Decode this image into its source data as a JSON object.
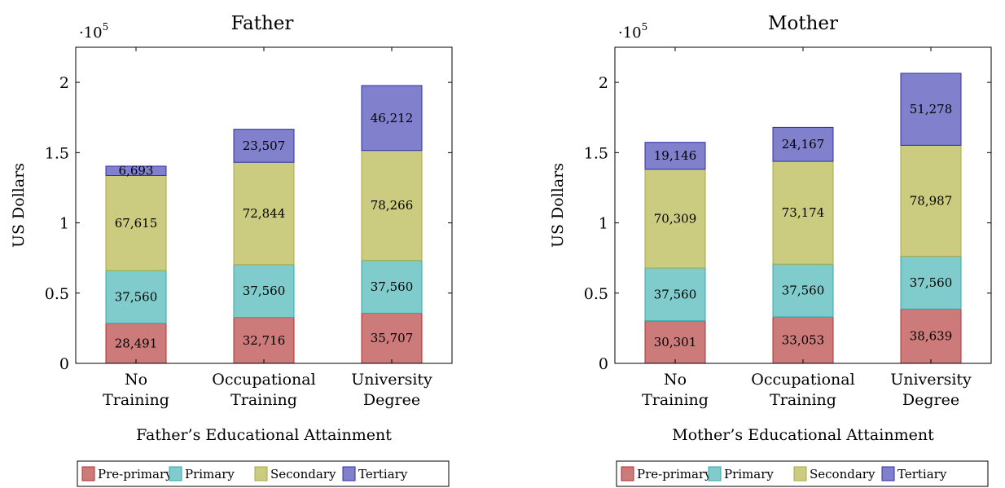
{
  "chart_data": [
    {
      "type": "bar",
      "stacked": true,
      "title": "Father",
      "xlabel": "Father’s Educational Attainment",
      "ylabel": "US Dollars",
      "ylim": [
        0,
        225000
      ],
      "yticks": [
        0,
        50000,
        100000,
        150000,
        200000
      ],
      "ytick_labels": [
        "0",
        "0.5",
        "1",
        "1.5",
        "2"
      ],
      "y_multiplier": "·10",
      "y_multiplier_exp": "5",
      "categories": [
        [
          "No",
          "Training"
        ],
        [
          "Occupational",
          "Training"
        ],
        [
          "University",
          "Degree"
        ]
      ],
      "series": [
        {
          "name": "Pre-primary",
          "values": [
            28491,
            32716,
            35707
          ],
          "labels": [
            "28,491",
            "32,716",
            "35,707"
          ]
        },
        {
          "name": "Primary",
          "values": [
            37560,
            37560,
            37560
          ],
          "labels": [
            "37,560",
            "37,560",
            "37,560"
          ]
        },
        {
          "name": "Secondary",
          "values": [
            67615,
            72844,
            78266
          ],
          "labels": [
            "67,615",
            "72,844",
            "78,266"
          ]
        },
        {
          "name": "Tertiary",
          "values": [
            6693,
            23507,
            46212
          ],
          "labels": [
            "6,693",
            "23,507",
            "46,212"
          ]
        }
      ],
      "legend_position": "bottom",
      "grid": false
    },
    {
      "type": "bar",
      "stacked": true,
      "title": "Mother",
      "xlabel": "Mother’s Educational Attainment",
      "ylabel": "US Dollars",
      "ylim": [
        0,
        225000
      ],
      "yticks": [
        0,
        50000,
        100000,
        150000,
        200000
      ],
      "ytick_labels": [
        "0",
        "0.5",
        "1",
        "1.5",
        "2"
      ],
      "y_multiplier": "·10",
      "y_multiplier_exp": "5",
      "categories": [
        [
          "No",
          "Training"
        ],
        [
          "Occupational",
          "Training"
        ],
        [
          "University",
          "Degree"
        ]
      ],
      "series": [
        {
          "name": "Pre-primary",
          "values": [
            30301,
            33053,
            38639
          ],
          "labels": [
            "30,301",
            "33,053",
            "38,639"
          ]
        },
        {
          "name": "Primary",
          "values": [
            37560,
            37560,
            37560
          ],
          "labels": [
            "37,560",
            "37,560",
            "37,560"
          ]
        },
        {
          "name": "Secondary",
          "values": [
            70309,
            73174,
            78987
          ],
          "labels": [
            "70,309",
            "73,174",
            "78,987"
          ]
        },
        {
          "name": "Tertiary",
          "values": [
            19146,
            24167,
            51278
          ],
          "labels": [
            "19,146",
            "24,167",
            "51,278"
          ]
        }
      ],
      "legend_position": "bottom",
      "grid": false
    }
  ],
  "colors": {
    "Pre-primary": {
      "fill": "#cc7a7a",
      "stroke": "#b03030"
    },
    "Primary": {
      "fill": "#80cccc",
      "stroke": "#30a8a8"
    },
    "Secondary": {
      "fill": "#cccc80",
      "stroke": "#a8a840"
    },
    "Tertiary": {
      "fill": "#8080cc",
      "stroke": "#3030a8"
    }
  }
}
